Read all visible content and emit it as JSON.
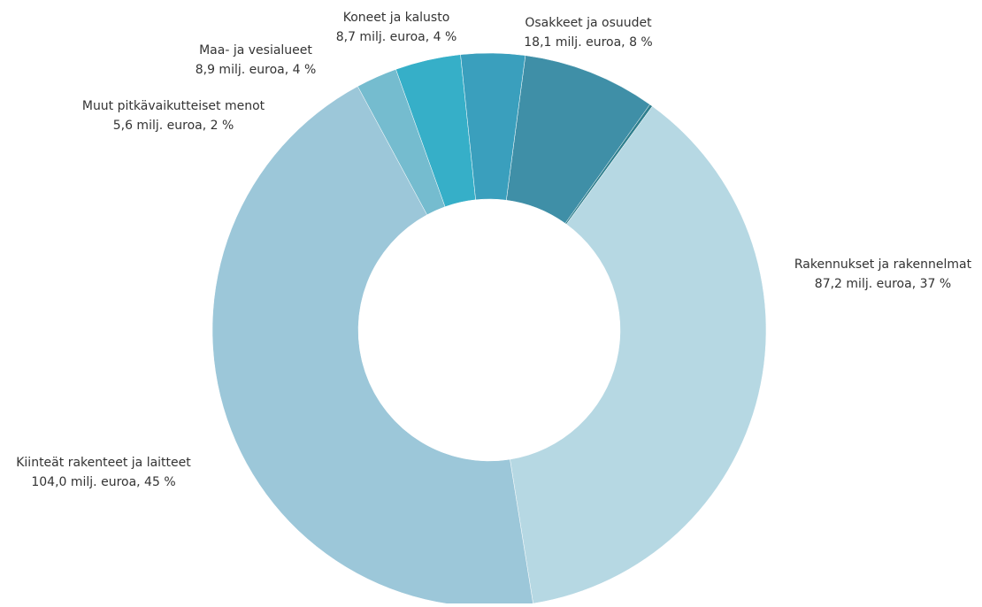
{
  "chart_data": {
    "type": "pie",
    "donut": true,
    "title": "",
    "unit": "milj. euroa",
    "slices": [
      {
        "label": "Osakkeet ja osuudet",
        "value": 18.1,
        "percent": 8,
        "value_text": "18,1 milj. euroa, 8 %",
        "color": "#3f8fa7"
      },
      {
        "label": "",
        "value": 0.4,
        "percent": 0,
        "value_text": "",
        "color": "#2f7f8e"
      },
      {
        "label": "Rakennukset ja rakennelmat",
        "value": 87.2,
        "percent": 37,
        "value_text": "87,2 milj. euroa, 37 %",
        "color": "#b6d8e3"
      },
      {
        "label": "Kiinteät rakenteet ja laitteet",
        "value": 104.0,
        "percent": 45,
        "value_text": "104,0 milj. euroa, 45 %",
        "color": "#9cc7d9"
      },
      {
        "label": "Muut pitkävaikutteiset menot",
        "value": 5.6,
        "percent": 2,
        "value_text": "5,6 milj. euroa, 2 %",
        "color": "#75bccf"
      },
      {
        "label": "Maa- ja vesialueet",
        "value": 8.9,
        "percent": 4,
        "value_text": "8,9 milj. euroa, 4 %",
        "color": "#36afc8"
      },
      {
        "label": "Koneet ja kalusto",
        "value": 8.7,
        "percent": 4,
        "value_text": "8,7 milj. euroa, 4 %",
        "color": "#3a9fbd"
      }
    ]
  }
}
